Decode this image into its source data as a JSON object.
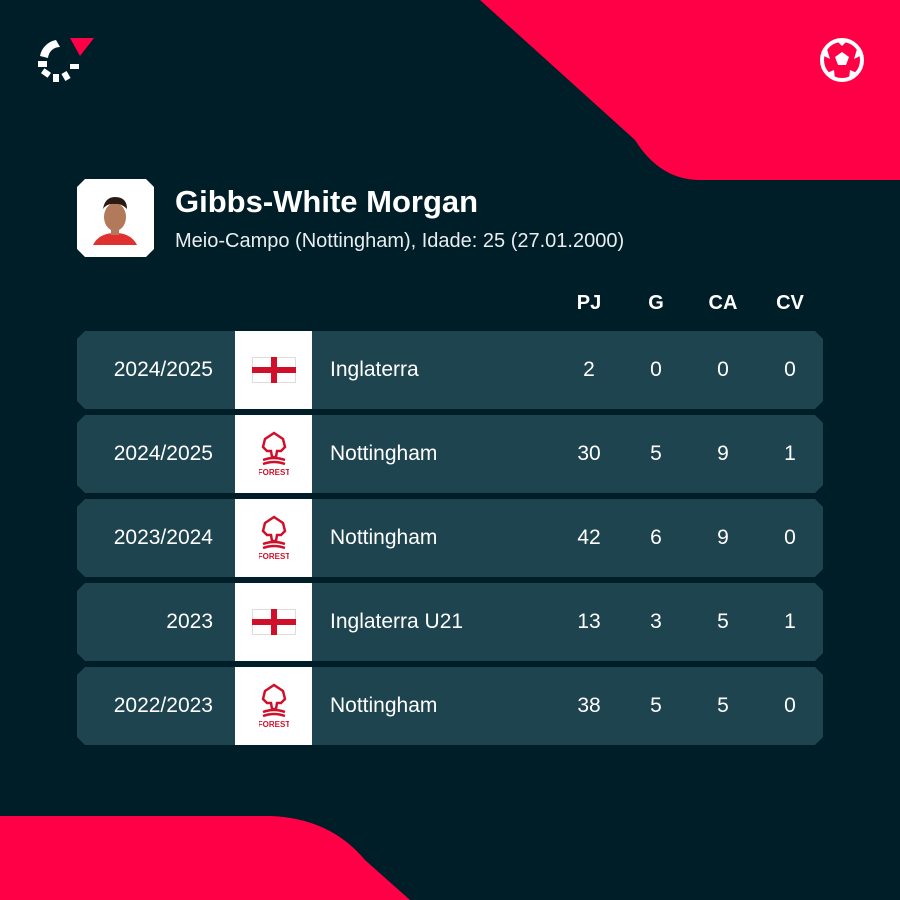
{
  "colors": {
    "background": "#001e28",
    "accent": "#ff0046",
    "row": "#1e4450"
  },
  "icons": {
    "logo": "flashscore-logo",
    "sport": "football-icon"
  },
  "player": {
    "name": "Gibbs-White Morgan",
    "subtitle": "Meio-Campo (Nottingham), Idade: 25 (27.01.2000)"
  },
  "columns": [
    "PJ",
    "G",
    "CA",
    "CV"
  ],
  "rows": [
    {
      "season": "2024/2025",
      "team": "Inglaterra",
      "crest": "england-flag",
      "stats": [
        "2",
        "0",
        "0",
        "0"
      ]
    },
    {
      "season": "2024/2025",
      "team": "Nottingham",
      "crest": "nottingham-forest-crest",
      "stats": [
        "30",
        "5",
        "9",
        "1"
      ]
    },
    {
      "season": "2023/2024",
      "team": "Nottingham",
      "crest": "nottingham-forest-crest",
      "stats": [
        "42",
        "6",
        "9",
        "0"
      ]
    },
    {
      "season": "2023",
      "team": "Inglaterra U21",
      "crest": "england-flag",
      "stats": [
        "13",
        "3",
        "5",
        "1"
      ]
    },
    {
      "season": "2022/2023",
      "team": "Nottingham",
      "crest": "nottingham-forest-crest",
      "stats": [
        "38",
        "5",
        "5",
        "0"
      ]
    }
  ]
}
